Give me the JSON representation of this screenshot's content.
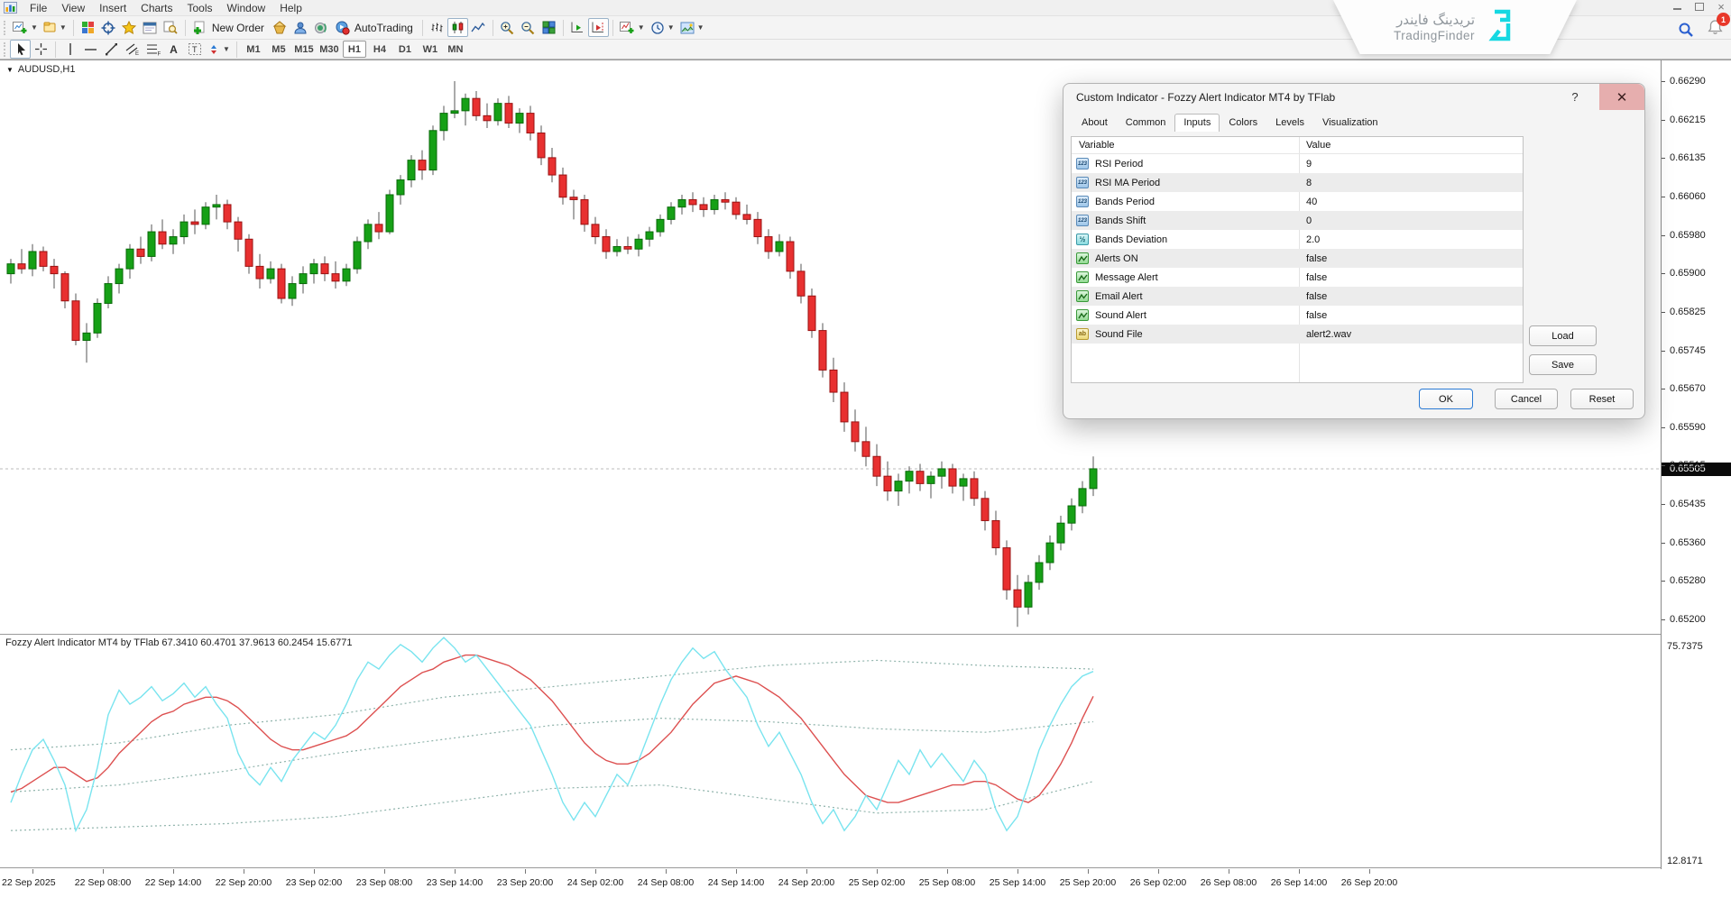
{
  "menubar": {
    "items": [
      "File",
      "View",
      "Insert",
      "Charts",
      "Tools",
      "Window",
      "Help"
    ]
  },
  "toolbar": {
    "new_order": "New Order",
    "autotrading": "AutoTrading"
  },
  "topbar": {
    "notification_count": "1"
  },
  "timeframes": [
    {
      "label": "M1",
      "active": false
    },
    {
      "label": "M5",
      "active": false
    },
    {
      "label": "M15",
      "active": false
    },
    {
      "label": "M30",
      "active": false
    },
    {
      "label": "H1",
      "active": true
    },
    {
      "label": "H4",
      "active": false
    },
    {
      "label": "D1",
      "active": false
    },
    {
      "label": "W1",
      "active": false
    },
    {
      "label": "MN",
      "active": false
    }
  ],
  "watermark": {
    "title_fa": "تریدینگ فایندر",
    "title_en": "TradingFinder"
  },
  "dialog": {
    "title": "Custom Indicator - Fozzy Alert Indicator MT4 by TFlab",
    "help": "?",
    "close": "✕",
    "tabs": [
      {
        "label": "About",
        "active": false
      },
      {
        "label": "Common",
        "active": false
      },
      {
        "label": "Inputs",
        "active": true
      },
      {
        "label": "Colors",
        "active": false
      },
      {
        "label": "Levels",
        "active": false
      },
      {
        "label": "Visualization",
        "active": false
      }
    ],
    "table": {
      "columns": [
        "Variable",
        "Value"
      ],
      "rows": [
        {
          "type": "int",
          "name": "RSI Period",
          "value": "9"
        },
        {
          "type": "int",
          "name": "RSI MA Period",
          "value": "8"
        },
        {
          "type": "int",
          "name": "Bands Period",
          "value": "40"
        },
        {
          "type": "int",
          "name": "Bands Shift",
          "value": "0"
        },
        {
          "type": "double",
          "name": "Bands Deviation",
          "value": "2.0"
        },
        {
          "type": "bool",
          "name": "Alerts ON",
          "value": "false"
        },
        {
          "type": "bool",
          "name": "Message Alert",
          "value": "false"
        },
        {
          "type": "bool",
          "name": "Email Alert",
          "value": "false"
        },
        {
          "type": "bool",
          "name": "Sound Alert",
          "value": "false"
        },
        {
          "type": "string",
          "name": "Sound File",
          "value": "alert2.wav"
        }
      ]
    },
    "buttons": {
      "load": "Load",
      "save": "Save",
      "ok": "OK",
      "cancel": "Cancel",
      "reset": "Reset"
    }
  },
  "chart_data": {
    "type": "candlestick",
    "symbol_label": "AUDUSD,H1",
    "current_price": "0.65505",
    "price_axis": {
      "max": 0.6629,
      "min": 0.652,
      "labels": [
        "0.66290",
        "0.66215",
        "0.66135",
        "0.66060",
        "0.65980",
        "0.65900",
        "0.65825",
        "0.65745",
        "0.65670",
        "0.65590",
        "0.65515",
        "0.65435",
        "0.65360",
        "0.65280",
        "0.65200"
      ]
    },
    "time_axis_labels": [
      "22 Sep 2025",
      "22 Sep 08:00",
      "22 Sep 14:00",
      "22 Sep 20:00",
      "23 Sep 02:00",
      "23 Sep 08:00",
      "23 Sep 14:00",
      "23 Sep 20:00",
      "24 Sep 02:00",
      "24 Sep 08:00",
      "24 Sep 14:00",
      "24 Sep 20:00",
      "25 Sep 02:00",
      "25 Sep 08:00",
      "25 Sep 14:00",
      "25 Sep 20:00",
      "26 Sep 02:00",
      "26 Sep 08:00",
      "26 Sep 14:00",
      "26 Sep 20:00"
    ],
    "colors": {
      "up": "#16a016",
      "up_border": "#0a6a0a",
      "down": "#e83030",
      "down_border": "#9a1212",
      "wick": "#555555",
      "bid_line": "#bbbbbb"
    },
    "candles": [
      [
        0.659,
        0.6593,
        0.6588,
        0.6592
      ],
      [
        0.6592,
        0.6595,
        0.659,
        0.6591
      ],
      [
        0.6591,
        0.6596,
        0.65895,
        0.65945
      ],
      [
        0.65945,
        0.65955,
        0.65905,
        0.65915
      ],
      [
        0.65915,
        0.6593,
        0.6587,
        0.659
      ],
      [
        0.659,
        0.65905,
        0.6583,
        0.65845
      ],
      [
        0.65845,
        0.6586,
        0.65755,
        0.65765
      ],
      [
        0.65765,
        0.658,
        0.6572,
        0.6578
      ],
      [
        0.6578,
        0.6585,
        0.6577,
        0.6584
      ],
      [
        0.6584,
        0.65895,
        0.6583,
        0.6588
      ],
      [
        0.6588,
        0.6592,
        0.6586,
        0.6591
      ],
      [
        0.6591,
        0.6596,
        0.6589,
        0.6595
      ],
      [
        0.6595,
        0.65975,
        0.6592,
        0.65935
      ],
      [
        0.65935,
        0.66,
        0.65925,
        0.65985
      ],
      [
        0.65985,
        0.6601,
        0.6595,
        0.6596
      ],
      [
        0.6596,
        0.6599,
        0.6594,
        0.65975
      ],
      [
        0.65975,
        0.6602,
        0.6596,
        0.66005
      ],
      [
        0.66005,
        0.6603,
        0.6598,
        0.66
      ],
      [
        0.66,
        0.66045,
        0.6599,
        0.66035
      ],
      [
        0.66035,
        0.6606,
        0.6601,
        0.6604
      ],
      [
        0.6604,
        0.6605,
        0.6599,
        0.66005
      ],
      [
        0.66005,
        0.66015,
        0.65945,
        0.6597
      ],
      [
        0.6597,
        0.6598,
        0.659,
        0.65915
      ],
      [
        0.65915,
        0.6594,
        0.6587,
        0.6589
      ],
      [
        0.6589,
        0.65925,
        0.6588,
        0.6591
      ],
      [
        0.6591,
        0.6592,
        0.6584,
        0.6585
      ],
      [
        0.6585,
        0.65895,
        0.65835,
        0.6588
      ],
      [
        0.6588,
        0.65915,
        0.6586,
        0.659
      ],
      [
        0.659,
        0.6593,
        0.6588,
        0.6592
      ],
      [
        0.6592,
        0.65935,
        0.65885,
        0.659
      ],
      [
        0.659,
        0.65925,
        0.6587,
        0.65885
      ],
      [
        0.65885,
        0.6592,
        0.65875,
        0.6591
      ],
      [
        0.6591,
        0.65975,
        0.659,
        0.65965
      ],
      [
        0.65965,
        0.6601,
        0.6595,
        0.66
      ],
      [
        0.66,
        0.66025,
        0.6597,
        0.65985
      ],
      [
        0.65985,
        0.6607,
        0.6598,
        0.6606
      ],
      [
        0.6606,
        0.661,
        0.6604,
        0.6609
      ],
      [
        0.6609,
        0.6614,
        0.66075,
        0.6613
      ],
      [
        0.6613,
        0.6615,
        0.6609,
        0.6611
      ],
      [
        0.6611,
        0.662,
        0.661,
        0.6619
      ],
      [
        0.6619,
        0.6624,
        0.6617,
        0.66225
      ],
      [
        0.66225,
        0.6629,
        0.66215,
        0.6623
      ],
      [
        0.6623,
        0.66265,
        0.662,
        0.66255
      ],
      [
        0.66255,
        0.6627,
        0.6621,
        0.6622
      ],
      [
        0.6622,
        0.66245,
        0.66195,
        0.6621
      ],
      [
        0.6621,
        0.66255,
        0.662,
        0.66245
      ],
      [
        0.66245,
        0.6626,
        0.66195,
        0.66205
      ],
      [
        0.66205,
        0.66235,
        0.66185,
        0.66225
      ],
      [
        0.66225,
        0.6624,
        0.6617,
        0.66185
      ],
      [
        0.66185,
        0.662,
        0.6612,
        0.66135
      ],
      [
        0.66135,
        0.66155,
        0.66085,
        0.661
      ],
      [
        0.661,
        0.66115,
        0.6604,
        0.66055
      ],
      [
        0.66055,
        0.6607,
        0.6601,
        0.6605
      ],
      [
        0.6605,
        0.6606,
        0.65985,
        0.66
      ],
      [
        0.66,
        0.66015,
        0.6596,
        0.65975
      ],
      [
        0.65975,
        0.6599,
        0.6593,
        0.65945
      ],
      [
        0.65945,
        0.6597,
        0.65935,
        0.65955
      ],
      [
        0.65955,
        0.65975,
        0.6594,
        0.6595
      ],
      [
        0.6595,
        0.6598,
        0.65935,
        0.6597
      ],
      [
        0.6597,
        0.65995,
        0.65955,
        0.65985
      ],
      [
        0.65985,
        0.6602,
        0.65975,
        0.6601
      ],
      [
        0.6601,
        0.66045,
        0.66,
        0.66035
      ],
      [
        0.66035,
        0.6606,
        0.6602,
        0.6605
      ],
      [
        0.6605,
        0.66065,
        0.66025,
        0.6604
      ],
      [
        0.6604,
        0.66055,
        0.66015,
        0.6603
      ],
      [
        0.6603,
        0.6606,
        0.6602,
        0.6605
      ],
      [
        0.6605,
        0.66065,
        0.6603,
        0.66045
      ],
      [
        0.66045,
        0.66055,
        0.6601,
        0.6602
      ],
      [
        0.6602,
        0.6604,
        0.66,
        0.6601
      ],
      [
        0.6601,
        0.66025,
        0.6596,
        0.65975
      ],
      [
        0.65975,
        0.6599,
        0.6593,
        0.65945
      ],
      [
        0.65945,
        0.6598,
        0.65935,
        0.65965
      ],
      [
        0.65965,
        0.65975,
        0.6589,
        0.65905
      ],
      [
        0.65905,
        0.6592,
        0.6584,
        0.65855
      ],
      [
        0.65855,
        0.6587,
        0.6577,
        0.65785
      ],
      [
        0.65785,
        0.658,
        0.6569,
        0.65705
      ],
      [
        0.65705,
        0.6573,
        0.6564,
        0.6566
      ],
      [
        0.6566,
        0.6568,
        0.6558,
        0.656
      ],
      [
        0.656,
        0.65625,
        0.6554,
        0.6556
      ],
      [
        0.6556,
        0.6559,
        0.6551,
        0.6553
      ],
      [
        0.6553,
        0.65555,
        0.6547,
        0.6549
      ],
      [
        0.6549,
        0.6552,
        0.6544,
        0.6546
      ],
      [
        0.6546,
        0.65495,
        0.6543,
        0.6548
      ],
      [
        0.6548,
        0.6551,
        0.65455,
        0.655
      ],
      [
        0.655,
        0.65515,
        0.6546,
        0.65475
      ],
      [
        0.65475,
        0.655,
        0.65445,
        0.6549
      ],
      [
        0.6549,
        0.6552,
        0.65465,
        0.65505
      ],
      [
        0.65505,
        0.65515,
        0.65455,
        0.6547
      ],
      [
        0.6547,
        0.65495,
        0.6544,
        0.65485
      ],
      [
        0.65485,
        0.655,
        0.6543,
        0.65445
      ],
      [
        0.65445,
        0.6546,
        0.6538,
        0.654
      ],
      [
        0.654,
        0.6542,
        0.6533,
        0.65345
      ],
      [
        0.65345,
        0.6536,
        0.6524,
        0.6526
      ],
      [
        0.6526,
        0.6529,
        0.65185,
        0.65225
      ],
      [
        0.65225,
        0.6529,
        0.6521,
        0.65275
      ],
      [
        0.65275,
        0.6533,
        0.6526,
        0.65315
      ],
      [
        0.65315,
        0.6537,
        0.653,
        0.65355
      ],
      [
        0.65355,
        0.6541,
        0.6534,
        0.65395
      ],
      [
        0.65395,
        0.65445,
        0.6538,
        0.6543
      ],
      [
        0.6543,
        0.6548,
        0.65415,
        0.65465
      ],
      [
        0.65465,
        0.6553,
        0.6545,
        0.65505
      ]
    ],
    "indicator": {
      "title": "Fozzy Alert Indicator MT4 by TFlab 67.3410 60.4701 37.9613 60.2454 15.6771",
      "scale_top": "75.7375",
      "scale_bottom": "12.8171",
      "value_max": 75.7375,
      "value_min": 12.8171,
      "colors": {
        "rsi": "#79e4ef",
        "ma": "#dd5050",
        "bands": "#8fb3ab"
      },
      "rsi": [
        30,
        38,
        45,
        48,
        42,
        35,
        22,
        28,
        40,
        55,
        62,
        58,
        60,
        63,
        59,
        61,
        64,
        60,
        63,
        58,
        54,
        44,
        38,
        35,
        40,
        36,
        42,
        46,
        50,
        48,
        52,
        58,
        65,
        70,
        68,
        72,
        75,
        73,
        70,
        74,
        77,
        74,
        70,
        72,
        68,
        64,
        60,
        56,
        52,
        45,
        38,
        30,
        25,
        30,
        26,
        32,
        38,
        35,
        42,
        50,
        58,
        65,
        70,
        74,
        71,
        73,
        68,
        64,
        60,
        52,
        46,
        50,
        44,
        38,
        30,
        24,
        28,
        22,
        26,
        32,
        28,
        35,
        42,
        38,
        45,
        40,
        44,
        40,
        36,
        42,
        38,
        28,
        22,
        26,
        35,
        45,
        52,
        58,
        63,
        66,
        67.34
      ],
      "ma": [
        33,
        34,
        36,
        38,
        40,
        40,
        38,
        36,
        37,
        40,
        44,
        47,
        50,
        53,
        55,
        56,
        58,
        59,
        60,
        60,
        59,
        57,
        54,
        51,
        48,
        46,
        45,
        45,
        46,
        47,
        48,
        49,
        51,
        54,
        57,
        60,
        63,
        65,
        67,
        68,
        70,
        71,
        72,
        72,
        71,
        70,
        69,
        67,
        65,
        62,
        59,
        55,
        51,
        47,
        44,
        42,
        41,
        41,
        42,
        44,
        47,
        50,
        54,
        58,
        61,
        64,
        65,
        66,
        65,
        64,
        62,
        60,
        57,
        54,
        50,
        46,
        42,
        38,
        35,
        32,
        31,
        30,
        30,
        31,
        32,
        33,
        34,
        35,
        35,
        36,
        36,
        35,
        33,
        31,
        30,
        32,
        36,
        41,
        47,
        54,
        60.25
      ],
      "bands": {
        "upper": [
          [
            0,
            45
          ],
          [
            10,
            47
          ],
          [
            20,
            52
          ],
          [
            30,
            55
          ],
          [
            40,
            60
          ],
          [
            50,
            63
          ],
          [
            60,
            66
          ],
          [
            70,
            69
          ],
          [
            80,
            70.5
          ],
          [
            90,
            69
          ],
          [
            100,
            68
          ]
        ],
        "middle": [
          [
            0,
            33
          ],
          [
            10,
            35
          ],
          [
            20,
            39
          ],
          [
            30,
            44
          ],
          [
            40,
            48
          ],
          [
            50,
            52
          ],
          [
            60,
            54
          ],
          [
            70,
            53
          ],
          [
            80,
            51
          ],
          [
            90,
            50
          ],
          [
            100,
            53
          ]
        ],
        "lower": [
          [
            0,
            22
          ],
          [
            10,
            23
          ],
          [
            20,
            24
          ],
          [
            30,
            26
          ],
          [
            40,
            30
          ],
          [
            50,
            34
          ],
          [
            60,
            35
          ],
          [
            70,
            31
          ],
          [
            80,
            27
          ],
          [
            90,
            28
          ],
          [
            100,
            36
          ]
        ]
      }
    }
  }
}
